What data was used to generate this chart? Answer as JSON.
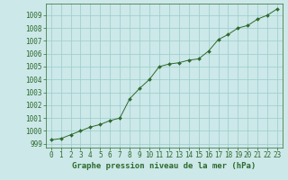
{
  "x": [
    0,
    1,
    2,
    3,
    4,
    5,
    6,
    7,
    8,
    9,
    10,
    11,
    12,
    13,
    14,
    15,
    16,
    17,
    18,
    19,
    20,
    21,
    22,
    23
  ],
  "y": [
    999.3,
    999.4,
    999.7,
    1000.0,
    1000.3,
    1000.5,
    1000.8,
    1001.0,
    1002.5,
    1003.3,
    1004.0,
    1005.0,
    1005.2,
    1005.3,
    1005.5,
    1005.6,
    1006.2,
    1007.1,
    1007.5,
    1008.0,
    1008.2,
    1008.7,
    1009.0,
    1009.5
  ],
  "line_color": "#2d6a2d",
  "marker_color": "#2d6a2d",
  "bg_color": "#cce8e8",
  "grid_color": "#99cccc",
  "xlabel": "Graphe pression niveau de la mer (hPa)",
  "ylabel_ticks": [
    999,
    1000,
    1001,
    1002,
    1003,
    1004,
    1005,
    1006,
    1007,
    1008,
    1009
  ],
  "ylim": [
    998.7,
    1009.9
  ],
  "xlim": [
    -0.5,
    23.5
  ],
  "xlabel_color": "#2d6a2d",
  "tick_color": "#2d6a2d",
  "font_size_label": 6.5,
  "font_size_tick": 5.5
}
